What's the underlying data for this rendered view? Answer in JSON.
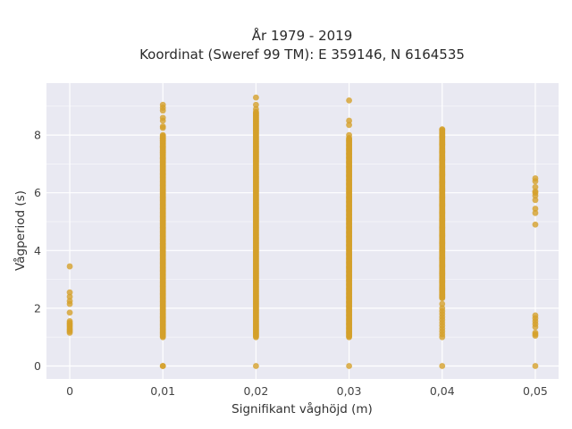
{
  "chart_data": {
    "type": "scatter",
    "title": "År 1979 - 2019",
    "subtitle": "Koordinat (Sweref 99 TM): E 359146, N 6164535",
    "xlabel": "Signifikant våghöjd (m)",
    "ylabel": "Vågperiod (s)",
    "xlim": [
      -0.0025,
      0.0525
    ],
    "ylim": [
      -0.45,
      9.8
    ],
    "x_ticks": [
      0,
      0.01,
      0.02,
      0.03,
      0.04,
      0.05
    ],
    "x_tick_labels": [
      "0",
      "0,01",
      "0,02",
      "0,03",
      "0,04",
      "0,05"
    ],
    "y_ticks": [
      0,
      2,
      4,
      6,
      8
    ],
    "y_tick_labels": [
      "0",
      "2",
      "4",
      "6",
      "8"
    ],
    "grid": true,
    "marker_color": "#d4a02a",
    "plot_background": "#e9e9f2",
    "groups": [
      {
        "x": 0,
        "y": [
          3.45,
          2.55,
          2.4,
          2.25,
          2.15,
          1.85,
          1.55,
          1.5,
          1.45,
          1.4,
          1.35,
          1.3,
          1.25,
          1.2,
          1.15
        ]
      },
      {
        "x": 0.01,
        "range": [
          1.0,
          8.0
        ],
        "y": [
          0,
          9.05,
          8.95,
          8.85,
          8.6,
          8.5,
          8.3,
          8.25,
          7.9,
          7.8,
          7.6,
          7.4,
          7.2,
          0.0
        ]
      },
      {
        "x": 0.02,
        "range": [
          1.0,
          8.8
        ],
        "y": [
          0,
          9.3,
          9.05,
          8.9
        ]
      },
      {
        "x": 0.03,
        "range": [
          1.0,
          7.9
        ],
        "y": [
          0,
          9.2,
          8.5,
          8.35,
          8.0
        ]
      },
      {
        "x": 0.04,
        "range": [
          2.35,
          8.2
        ],
        "y": [
          0,
          2.15,
          2.0,
          1.9,
          1.8,
          1.7,
          1.6,
          1.5,
          1.4,
          1.3,
          1.2,
          1.1,
          1.0
        ]
      },
      {
        "x": 0.05,
        "range": null,
        "y": [
          6.5,
          6.4,
          6.2,
          6.05,
          6.0,
          5.9,
          5.75,
          5.45,
          5.3,
          4.9,
          1.75,
          1.65,
          1.55,
          1.45,
          1.35,
          1.15,
          1.1,
          1.05,
          0
        ]
      }
    ]
  }
}
